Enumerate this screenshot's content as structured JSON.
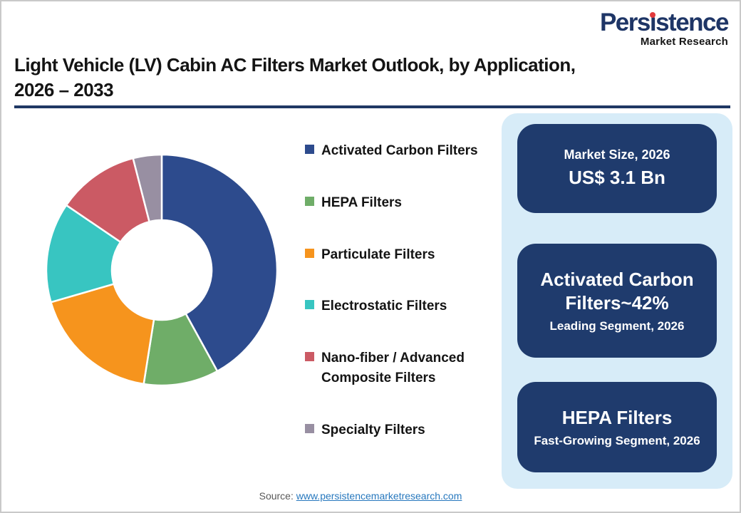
{
  "header": {
    "logo": {
      "brand_pre": "Pers",
      "brand_i": "ı",
      "brand_post": "stence",
      "tagline": "Market Research"
    },
    "title": "Light Vehicle (LV) Cabin AC Filters Market Outlook, by Application,\n2026 – 2033"
  },
  "chart_data": {
    "type": "pie",
    "subtype": "donut",
    "title": "Light Vehicle (LV) Cabin AC Filters Market Outlook, by Application, 2026 – 2033",
    "start_angle": "top",
    "direction": "clockwise",
    "legend_position": "right",
    "inner_radius_ratio": 0.43,
    "series": [
      {
        "label": "Activated Carbon Filters",
        "value": 42,
        "color": "#2d4b8d"
      },
      {
        "label": "HEPA Filters",
        "value": 10.5,
        "color": "#6fad68"
      },
      {
        "label": "Particulate Filters",
        "value": 18,
        "color": "#f6941d"
      },
      {
        "label": "Electrostatic Filters",
        "value": 14,
        "color": "#38c5c1"
      },
      {
        "label": "Nano-fiber / Advanced Composite Filters",
        "value": 11.5,
        "color": "#cb5a64"
      },
      {
        "label": "Specialty Filters",
        "value": 4,
        "color": "#988fa2"
      }
    ]
  },
  "panel": {
    "background": "#d7ecf8",
    "card_background": "#1f3b6d",
    "cards": [
      {
        "top": "Market Size, 2026",
        "main": "US$ 3.1 Bn",
        "sub": ""
      },
      {
        "top": "",
        "main": "Activated Carbon Filters~42%",
        "sub": "Leading Segment, 2026"
      },
      {
        "top": "",
        "main": "HEPA Filters",
        "sub": "Fast-Growing Segment, 2026"
      }
    ]
  },
  "footer": {
    "source_label": "Source:",
    "source_link": "www.persistencemarketresearch.com"
  },
  "colors": {
    "brand_navy": "#1e3566",
    "title_rule_navy": "#1f3864",
    "panel_background": "#d7ecf8",
    "card_navy": "#1f3b6d",
    "link_blue": "#2778be",
    "logo_dot_red": "#e23a3c"
  }
}
